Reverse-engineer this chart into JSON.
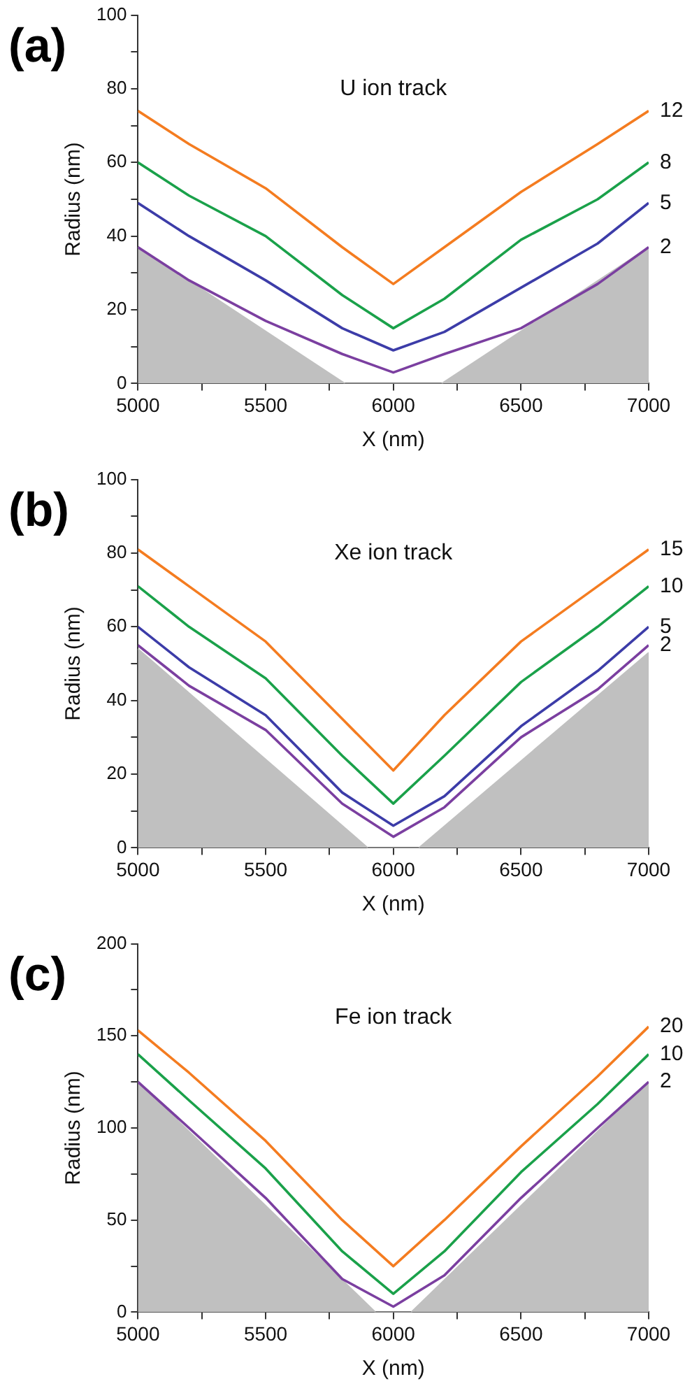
{
  "chart_data": [
    {
      "type": "line",
      "title": "U ion track",
      "xlabel": "X (nm)",
      "ylabel": "Radius (nm)",
      "annotations": [
        "(a)"
      ],
      "grid": false,
      "legend": false,
      "marker": "none",
      "line_style": "solid",
      "xlim": [
        5000,
        7000
      ],
      "xticks": [
        5000,
        {
          "value": 5250,
          "label": null
        },
        5500,
        {
          "value": 5750,
          "label": null
        },
        6000,
        {
          "value": 6250,
          "label": null
        },
        6500,
        {
          "value": 6750,
          "label": null
        },
        7000
      ],
      "ylim": [
        0,
        100
      ],
      "yticks": [
        0,
        {
          "value": 10,
          "label": null
        },
        20,
        {
          "value": 30,
          "label": null
        },
        40,
        {
          "value": 50,
          "label": null
        },
        60,
        {
          "value": 70,
          "label": null
        },
        80,
        {
          "value": 90,
          "label": null
        },
        100
      ],
      "series": [
        {
          "type": "area",
          "color": "#c0c0c0",
          "x": [
            5000,
            5810,
            6190,
            7000
          ],
          "values": [
            37,
            0,
            0,
            37
          ]
        },
        {
          "name": "12",
          "color": "#f47c20",
          "x": [
            5000,
            5200,
            5500,
            5800,
            6000,
            6200,
            6500,
            6800,
            7000
          ],
          "values": [
            74,
            65,
            53,
            37,
            27,
            37,
            52,
            65,
            74
          ]
        },
        {
          "name": "8",
          "color": "#1aa14a",
          "x": [
            5000,
            5200,
            5500,
            5800,
            6000,
            6200,
            6500,
            6800,
            7000
          ],
          "values": [
            60,
            51,
            40,
            24,
            15,
            23,
            39,
            50,
            60
          ]
        },
        {
          "name": "5",
          "color": "#3c3ca8",
          "x": [
            5000,
            5200,
            5500,
            5800,
            6000,
            6200,
            6500,
            6800,
            7000
          ],
          "values": [
            49,
            40,
            28,
            15,
            9,
            14,
            26,
            38,
            49
          ]
        },
        {
          "name": "2",
          "color": "#7b3fa0",
          "x": [
            5000,
            5200,
            5500,
            5800,
            6000,
            6200,
            6500,
            6800,
            7000
          ],
          "values": [
            37,
            28,
            17,
            8,
            3,
            8,
            15,
            27,
            37
          ]
        }
      ]
    },
    {
      "type": "line",
      "title": "Xe ion track",
      "xlabel": "X (nm)",
      "ylabel": "Radius (nm)",
      "annotations": [
        "(b)"
      ],
      "grid": false,
      "legend": false,
      "marker": "none",
      "line_style": "solid",
      "xlim": [
        5000,
        7000
      ],
      "xticks": [
        5000,
        {
          "value": 5250,
          "label": null
        },
        5500,
        {
          "value": 5750,
          "label": null
        },
        6000,
        {
          "value": 6250,
          "label": null
        },
        6500,
        {
          "value": 6750,
          "label": null
        },
        7000
      ],
      "ylim": [
        0,
        100
      ],
      "yticks": [
        0,
        {
          "value": 10,
          "label": null
        },
        20,
        {
          "value": 30,
          "label": null
        },
        40,
        {
          "value": 50,
          "label": null
        },
        60,
        {
          "value": 70,
          "label": null
        },
        80,
        {
          "value": 90,
          "label": null
        },
        100
      ],
      "series": [
        {
          "type": "area",
          "color": "#c0c0c0",
          "x": [
            5000,
            5900,
            6100,
            7000
          ],
          "values": [
            54,
            0,
            0,
            53
          ]
        },
        {
          "name": "15",
          "color": "#f47c20",
          "x": [
            5000,
            5200,
            5500,
            5800,
            6000,
            6200,
            6500,
            6800,
            7000
          ],
          "values": [
            81,
            71,
            56,
            35,
            21,
            36,
            56,
            71,
            81
          ]
        },
        {
          "name": "10",
          "color": "#1aa14a",
          "x": [
            5000,
            5200,
            5500,
            5800,
            6000,
            6200,
            6500,
            6800,
            7000
          ],
          "values": [
            71,
            60,
            46,
            25,
            12,
            25,
            45,
            60,
            71
          ]
        },
        {
          "name": "5",
          "color": "#3c3ca8",
          "x": [
            5000,
            5200,
            5500,
            5800,
            6000,
            6200,
            6500,
            6800,
            7000
          ],
          "values": [
            60,
            49,
            36,
            15,
            6,
            14,
            33,
            48,
            60
          ]
        },
        {
          "name": "2",
          "color": "#7b3fa0",
          "x": [
            5000,
            5200,
            5500,
            5800,
            6000,
            6200,
            6500,
            6800,
            7000
          ],
          "values": [
            55,
            44,
            32,
            12,
            3,
            11,
            30,
            43,
            55
          ]
        }
      ]
    },
    {
      "type": "line",
      "title": "Fe ion track",
      "xlabel": "X (nm)",
      "ylabel": "Radius (nm)",
      "annotations": [
        "(c)"
      ],
      "grid": false,
      "legend": false,
      "marker": "none",
      "line_style": "solid",
      "xlim": [
        5000,
        7000
      ],
      "xticks": [
        5000,
        {
          "value": 5250,
          "label": null
        },
        5500,
        {
          "value": 5750,
          "label": null
        },
        6000,
        {
          "value": 6250,
          "label": null
        },
        6500,
        {
          "value": 6750,
          "label": null
        },
        7000
      ],
      "ylim": [
        0,
        200
      ],
      "yticks": [
        0,
        {
          "value": 25,
          "label": null
        },
        50,
        {
          "value": 75,
          "label": null
        },
        100,
        {
          "value": 125,
          "label": null
        },
        150,
        {
          "value": 175,
          "label": null
        },
        200
      ],
      "series": [
        {
          "type": "area",
          "color": "#c0c0c0",
          "x": [
            5000,
            5930,
            6070,
            7000
          ],
          "values": [
            125,
            0,
            0,
            125
          ]
        },
        {
          "name": "20",
          "color": "#f47c20",
          "x": [
            5000,
            5200,
            5500,
            5800,
            6000,
            6200,
            6500,
            6800,
            7000
          ],
          "values": [
            153,
            130,
            93,
            50,
            25,
            50,
            90,
            128,
            155
          ]
        },
        {
          "name": "10",
          "color": "#1aa14a",
          "x": [
            5000,
            5200,
            5500,
            5800,
            6000,
            6200,
            6500,
            6800,
            7000
          ],
          "values": [
            140,
            115,
            78,
            33,
            10,
            33,
            76,
            113,
            140
          ]
        },
        {
          "name": "2",
          "color": "#7b3fa0",
          "x": [
            5000,
            5200,
            5500,
            5800,
            6000,
            6200,
            6500,
            6800,
            7000
          ],
          "values": [
            125,
            100,
            62,
            18,
            3,
            20,
            62,
            100,
            125
          ]
        }
      ]
    }
  ]
}
